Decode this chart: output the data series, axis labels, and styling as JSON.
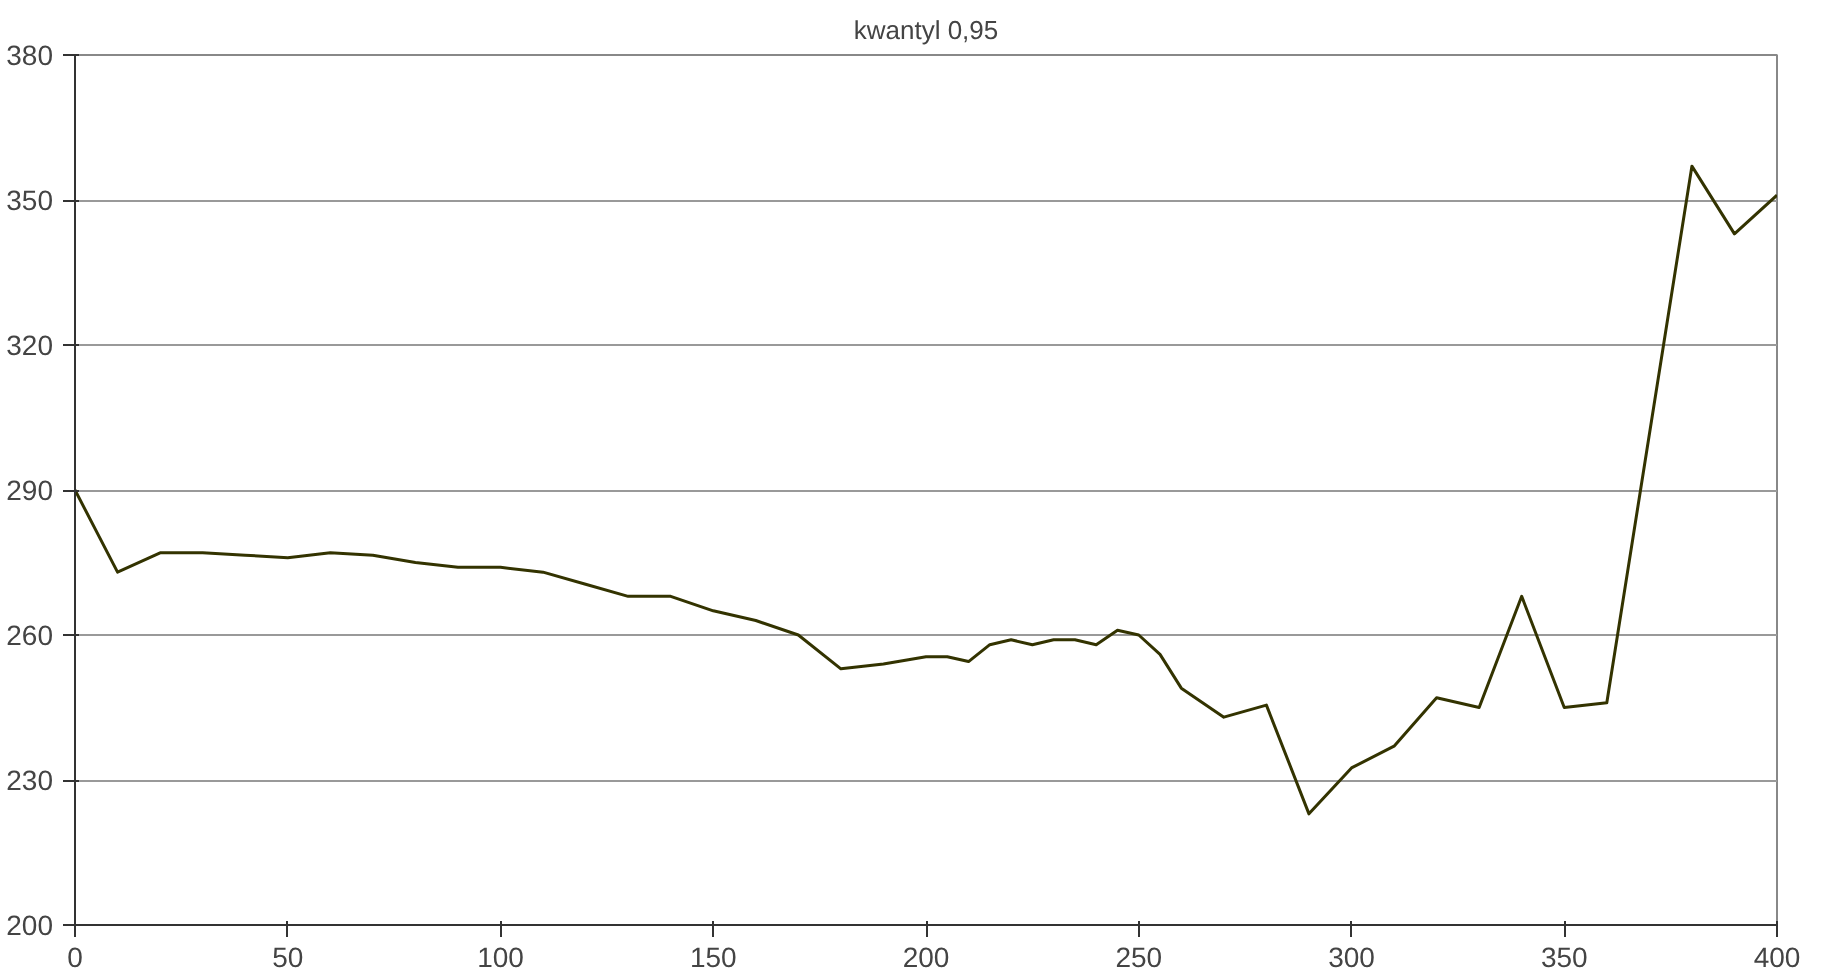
{
  "chart_data": {
    "type": "line",
    "title": "kwantyl 0,95",
    "x": [
      0,
      10,
      20,
      30,
      40,
      50,
      60,
      70,
      80,
      90,
      100,
      110,
      120,
      130,
      140,
      150,
      160,
      170,
      180,
      190,
      200,
      205,
      210,
      215,
      220,
      225,
      230,
      235,
      240,
      245,
      250,
      255,
      260,
      270,
      280,
      290,
      300,
      310,
      320,
      330,
      340,
      350,
      360,
      380,
      390,
      400
    ],
    "series": [
      {
        "color": "#333300",
        "values": [
          290,
          273,
          277,
          277,
          276.5,
          276,
          277,
          276.5,
          275,
          274,
          274,
          273,
          270.5,
          268,
          268,
          265,
          263,
          260,
          253,
          254,
          255.5,
          255.5,
          254.5,
          258,
          259,
          258,
          259,
          259,
          258,
          261,
          260,
          256,
          249,
          243,
          245.5,
          223,
          232.5,
          237,
          247,
          245,
          268,
          245,
          246,
          357,
          343,
          351
        ]
      }
    ],
    "xlim": [
      0,
      400
    ],
    "xticks": [
      0,
      50,
      100,
      150,
      200,
      250,
      300,
      350,
      400
    ],
    "ylim": [
      200,
      380
    ],
    "yticks": [
      200,
      230,
      260,
      290,
      320,
      350,
      380
    ],
    "grid": "y",
    "marker": "none",
    "line_style": "solid"
  }
}
